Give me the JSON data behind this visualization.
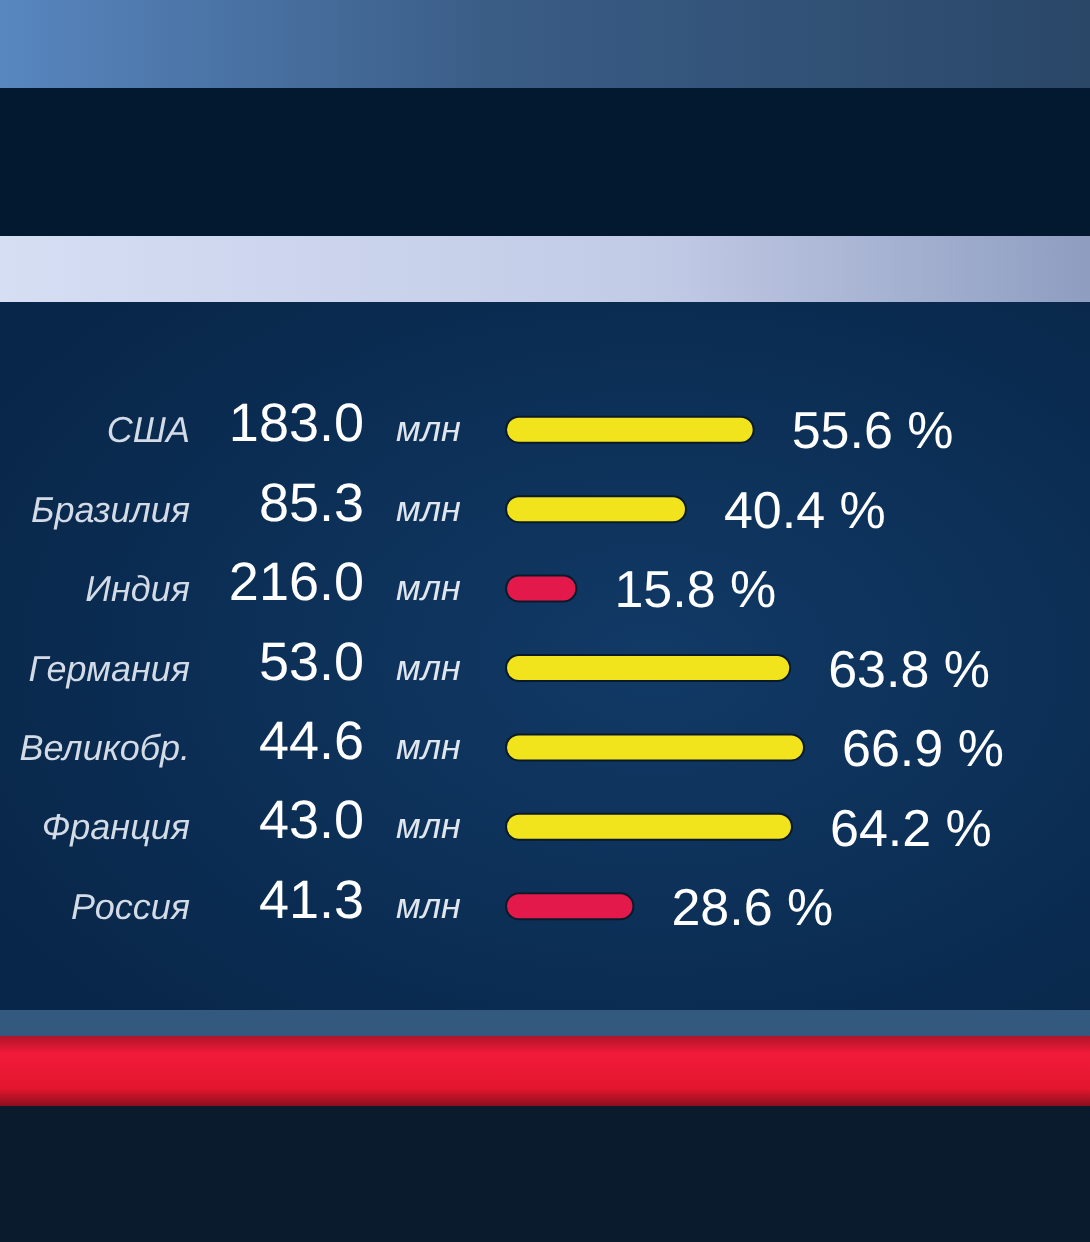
{
  "chart_data": {
    "type": "bar",
    "orientation": "horizontal",
    "categories": [
      "США",
      "Бразилия",
      "Индия",
      "Германия",
      "Великобр.",
      "Франция",
      "Россия"
    ],
    "values": [
      55.6,
      40.4,
      15.8,
      63.8,
      66.9,
      64.2,
      28.6
    ],
    "colors": [
      "#f2e41c",
      "#f2e41c",
      "#e3194b",
      "#f2e41c",
      "#f2e41c",
      "#f2e41c",
      "#e3194b"
    ],
    "value_labels": [
      "55.6 %",
      "40.4 %",
      "15.8 %",
      "63.8 %",
      "66.9 %",
      "64.2 %",
      "28.6 %"
    ],
    "annotations": [
      "183.0 млн",
      "85.3 млн",
      "216.0 млн",
      "53.0 млн",
      "44.6 млн",
      "43.0 млн",
      "41.3 млн"
    ]
  }
}
